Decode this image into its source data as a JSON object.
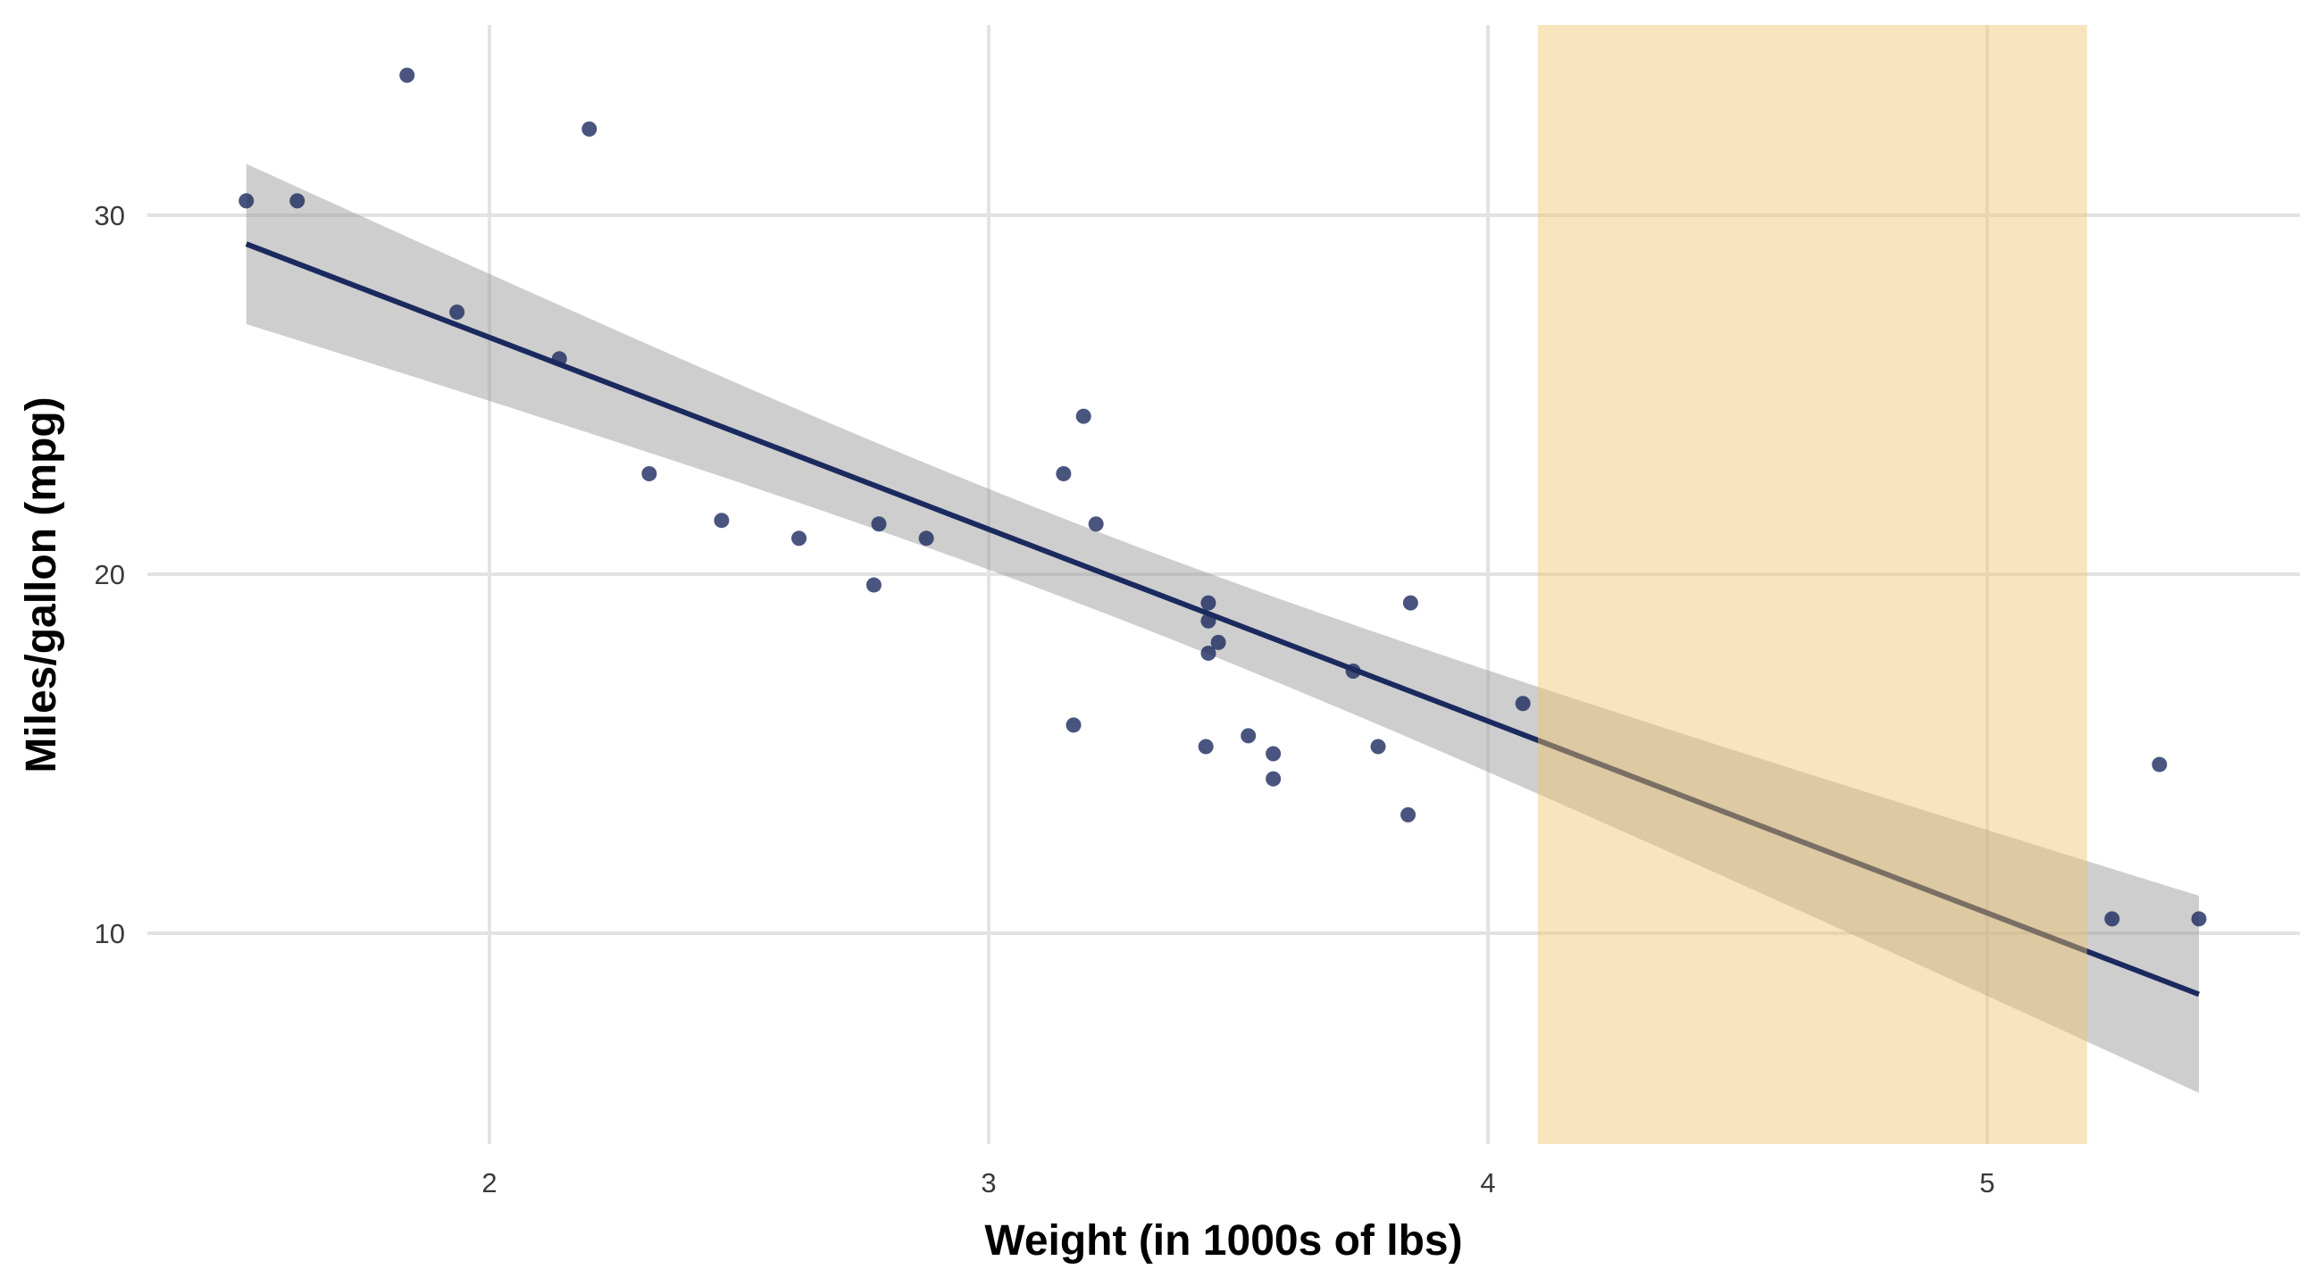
{
  "chart_data": {
    "type": "scatter",
    "title": "",
    "xlabel": "Weight (in 1000s of lbs)",
    "ylabel": "Miles/gallon (mpg)",
    "xlim": [
      1.3,
      5.65
    ],
    "ylim": [
      4.3,
      35.5
    ],
    "xticks": [
      2,
      3,
      4,
      5
    ],
    "yticks": [
      10,
      20,
      30
    ],
    "grid": true,
    "colors": {
      "points": "#1b2a5e",
      "line": "#1b2a5e",
      "band": "#999999",
      "highlight": "#f0c36d",
      "grid": "#e3e3e3"
    },
    "highlight_region": {
      "x_from": 4.1,
      "x_to": 5.2
    },
    "regression": {
      "intercept": 37.285,
      "slope": -5.344,
      "residual_se": 3.046,
      "n": 32,
      "x_mean": 3.21725,
      "sxx": 29.679,
      "t_crit": 2.0395,
      "level": 0.95
    },
    "points": [
      [
        2.62,
        21.0
      ],
      [
        2.875,
        21.0
      ],
      [
        2.32,
        22.8
      ],
      [
        3.215,
        21.4
      ],
      [
        3.44,
        18.7
      ],
      [
        3.46,
        18.1
      ],
      [
        3.57,
        14.3
      ],
      [
        3.19,
        24.4
      ],
      [
        3.15,
        22.8
      ],
      [
        3.44,
        19.2
      ],
      [
        3.44,
        17.8
      ],
      [
        4.07,
        16.4
      ],
      [
        3.73,
        17.3
      ],
      [
        3.78,
        15.2
      ],
      [
        5.25,
        10.4
      ],
      [
        5.424,
        10.4
      ],
      [
        5.345,
        14.7
      ],
      [
        2.2,
        32.4
      ],
      [
        1.615,
        30.4
      ],
      [
        1.835,
        33.9
      ],
      [
        2.465,
        21.5
      ],
      [
        3.52,
        15.5
      ],
      [
        3.435,
        15.2
      ],
      [
        3.84,
        13.3
      ],
      [
        3.845,
        19.2
      ],
      [
        1.935,
        27.3
      ],
      [
        2.14,
        26.0
      ],
      [
        1.513,
        30.4
      ],
      [
        3.17,
        15.8
      ],
      [
        2.77,
        19.7
      ],
      [
        3.57,
        15.0
      ],
      [
        2.78,
        21.4
      ]
    ]
  }
}
